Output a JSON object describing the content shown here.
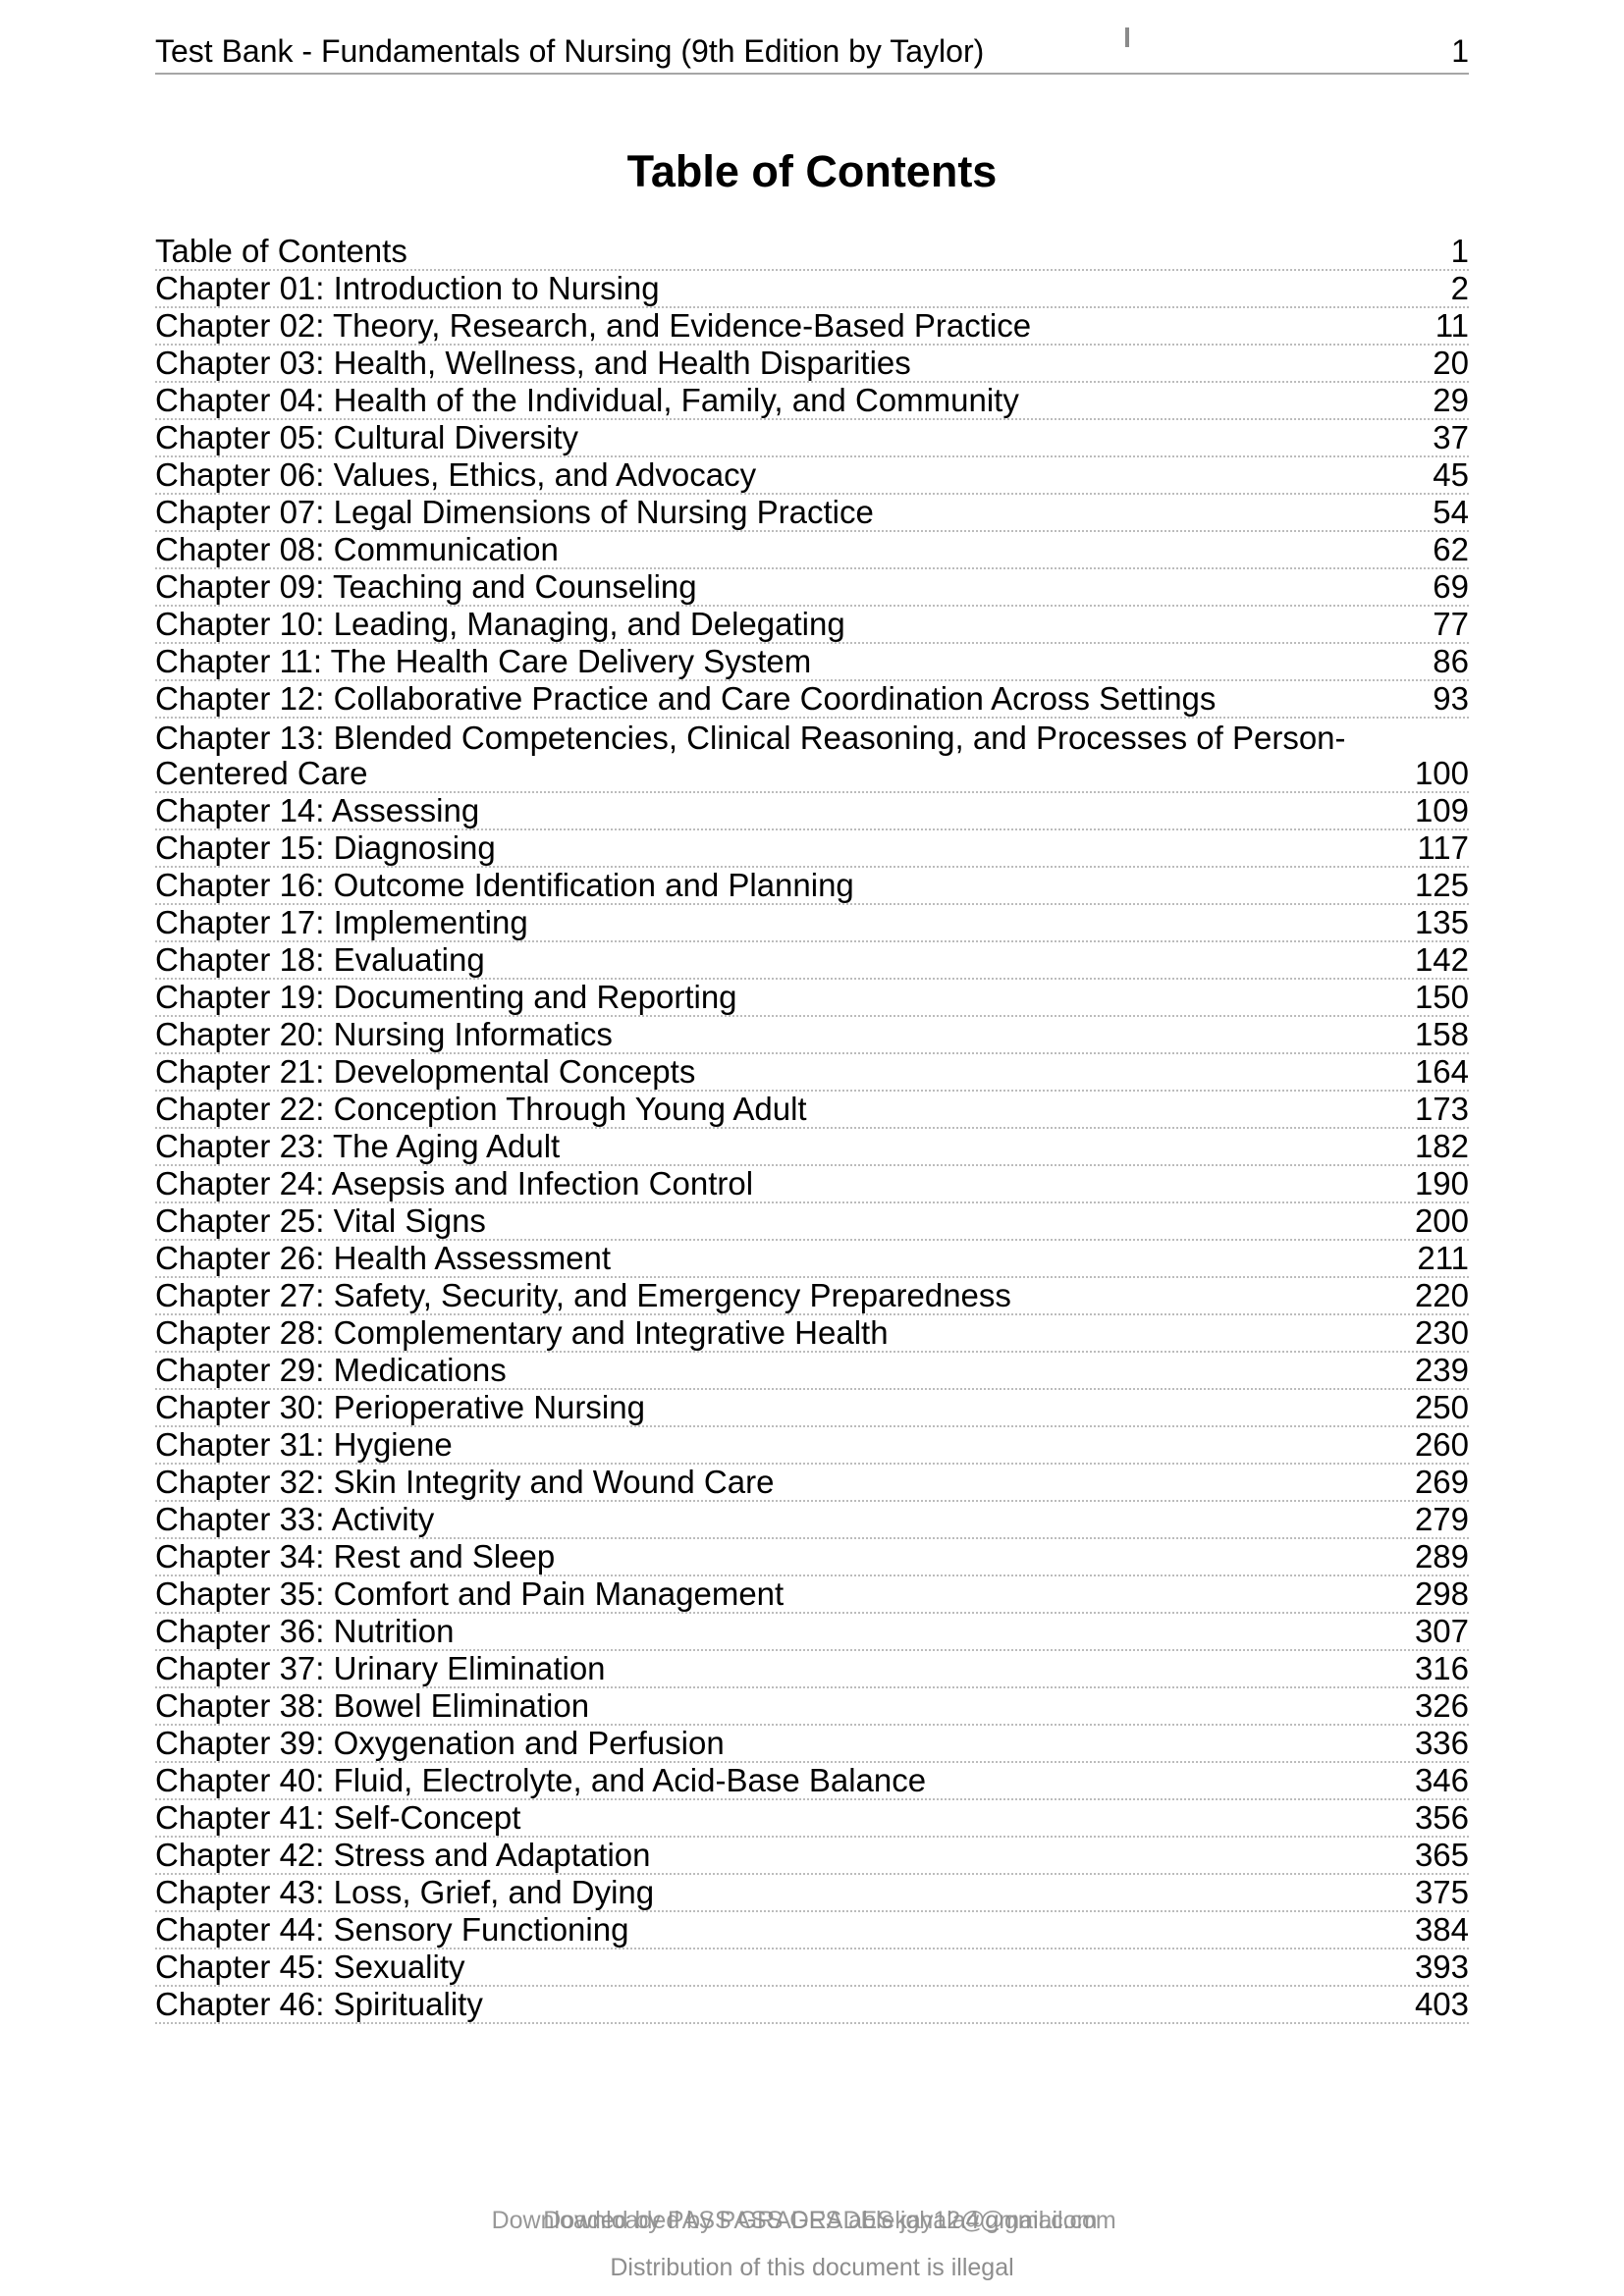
{
  "header": {
    "left_text": "Test Bank - Fundamentals of Nursing (9th Edition by Taylor)",
    "page_number": "1"
  },
  "title": "Table of Contents",
  "toc": {
    "entries": [
      {
        "lines": [
          "Table of Contents"
        ],
        "page": "1"
      },
      {
        "lines": [
          "Chapter 01: Introduction to Nursing"
        ],
        "page": "2"
      },
      {
        "lines": [
          "Chapter 02: Theory, Research, and Evidence-Based Practice"
        ],
        "page": "11"
      },
      {
        "lines": [
          "Chapter 03: Health, Wellness, and Health Disparities"
        ],
        "page": "20"
      },
      {
        "lines": [
          "Chapter 04: Health of the Individual, Family, and Community"
        ],
        "page": "29"
      },
      {
        "lines": [
          "Chapter 05: Cultural Diversity"
        ],
        "page": "37"
      },
      {
        "lines": [
          "Chapter 06: Values, Ethics, and Advocacy"
        ],
        "page": "45"
      },
      {
        "lines": [
          "Chapter 07: Legal Dimensions of Nursing Practice"
        ],
        "page": "54"
      },
      {
        "lines": [
          "Chapter 08: Communication"
        ],
        "page": "62"
      },
      {
        "lines": [
          "Chapter 09: Teaching and Counseling"
        ],
        "page": "69"
      },
      {
        "lines": [
          "Chapter 10: Leading, Managing, and Delegating"
        ],
        "page": "77"
      },
      {
        "lines": [
          "Chapter 11: The Health Care Delivery System"
        ],
        "page": "86"
      },
      {
        "lines": [
          "Chapter 12: Collaborative Practice and Care Coordination Across Settings"
        ],
        "page": "93"
      },
      {
        "lines": [
          "Chapter 13: Blended Competencies, Clinical Reasoning, and Processes of Person-",
          "Centered Care"
        ],
        "page": "100"
      },
      {
        "lines": [
          "Chapter 14: Assessing"
        ],
        "page": "109"
      },
      {
        "lines": [
          "Chapter 15: Diagnosing"
        ],
        "page": "117"
      },
      {
        "lines": [
          "Chapter 16: Outcome Identification and Planning"
        ],
        "page": "125"
      },
      {
        "lines": [
          "Chapter 17: Implementing"
        ],
        "page": "135"
      },
      {
        "lines": [
          "Chapter 18: Evaluating"
        ],
        "page": "142"
      },
      {
        "lines": [
          "Chapter 19: Documenting and Reporting"
        ],
        "page": "150"
      },
      {
        "lines": [
          "Chapter 20: Nursing Informatics"
        ],
        "page": "158"
      },
      {
        "lines": [
          "Chapter 21: Developmental Concepts"
        ],
        "page": "164"
      },
      {
        "lines": [
          "Chapter 22: Conception Through Young Adult"
        ],
        "page": "173"
      },
      {
        "lines": [
          "Chapter 23: The Aging Adult"
        ],
        "page": "182"
      },
      {
        "lines": [
          "Chapter 24: Asepsis and Infection Control"
        ],
        "page": "190"
      },
      {
        "lines": [
          "Chapter 25: Vital Signs"
        ],
        "page": "200"
      },
      {
        "lines": [
          "Chapter 26: Health Assessment"
        ],
        "page": "211"
      },
      {
        "lines": [
          "Chapter 27: Safety, Security, and Emergency Preparedness"
        ],
        "page": "220"
      },
      {
        "lines": [
          "Chapter 28: Complementary and Integrative Health"
        ],
        "page": "230"
      },
      {
        "lines": [
          "Chapter 29: Medications"
        ],
        "page": "239"
      },
      {
        "lines": [
          "Chapter 30: Perioperative Nursing"
        ],
        "page": "250"
      },
      {
        "lines": [
          "Chapter 31: Hygiene"
        ],
        "page": "260"
      },
      {
        "lines": [
          "Chapter 32: Skin Integrity and Wound Care"
        ],
        "page": "269"
      },
      {
        "lines": [
          "Chapter 33: Activity"
        ],
        "page": "279"
      },
      {
        "lines": [
          "Chapter 34: Rest and Sleep"
        ],
        "page": "289"
      },
      {
        "lines": [
          "Chapter 35: Comfort and Pain Management"
        ],
        "page": "298"
      },
      {
        "lines": [
          "Chapter 36: Nutrition"
        ],
        "page": "307"
      },
      {
        "lines": [
          "Chapter 37: Urinary Elimination"
        ],
        "page": "316"
      },
      {
        "lines": [
          "Chapter 38: Bowel Elimination"
        ],
        "page": "326"
      },
      {
        "lines": [
          "Chapter 39: Oxygenation and Perfusion"
        ],
        "page": "336"
      },
      {
        "lines": [
          "Chapter 40: Fluid, Electrolyte, and Acid-Base Balance"
        ],
        "page": "346"
      },
      {
        "lines": [
          "Chapter 41: Self-Concept"
        ],
        "page": "356"
      },
      {
        "lines": [
          "Chapter 42: Stress and Adaptation"
        ],
        "page": "365"
      },
      {
        "lines": [
          "Chapter 43: Loss, Grief, and Dying"
        ],
        "page": "375"
      },
      {
        "lines": [
          "Chapter 44: Sensory Functioning"
        ],
        "page": "384"
      },
      {
        "lines": [
          "Chapter 45: Sexuality"
        ],
        "page": "393"
      },
      {
        "lines": [
          "Chapter 46: Spirituality"
        ],
        "page": "403"
      }
    ]
  },
  "footer": {
    "watermark_layers": [
      "Downloaded by PASS GRADES ablekay12@gmail.com",
      "Downloaded by PASS GRADES jghala4@gmail.com"
    ],
    "notice": "Distribution of this document is illegal"
  },
  "colors": {
    "text": "#000000",
    "dotted_leader": "#bcbcbc",
    "header_rule": "#a6a6a6",
    "footer_text": "#8d8d8d"
  }
}
